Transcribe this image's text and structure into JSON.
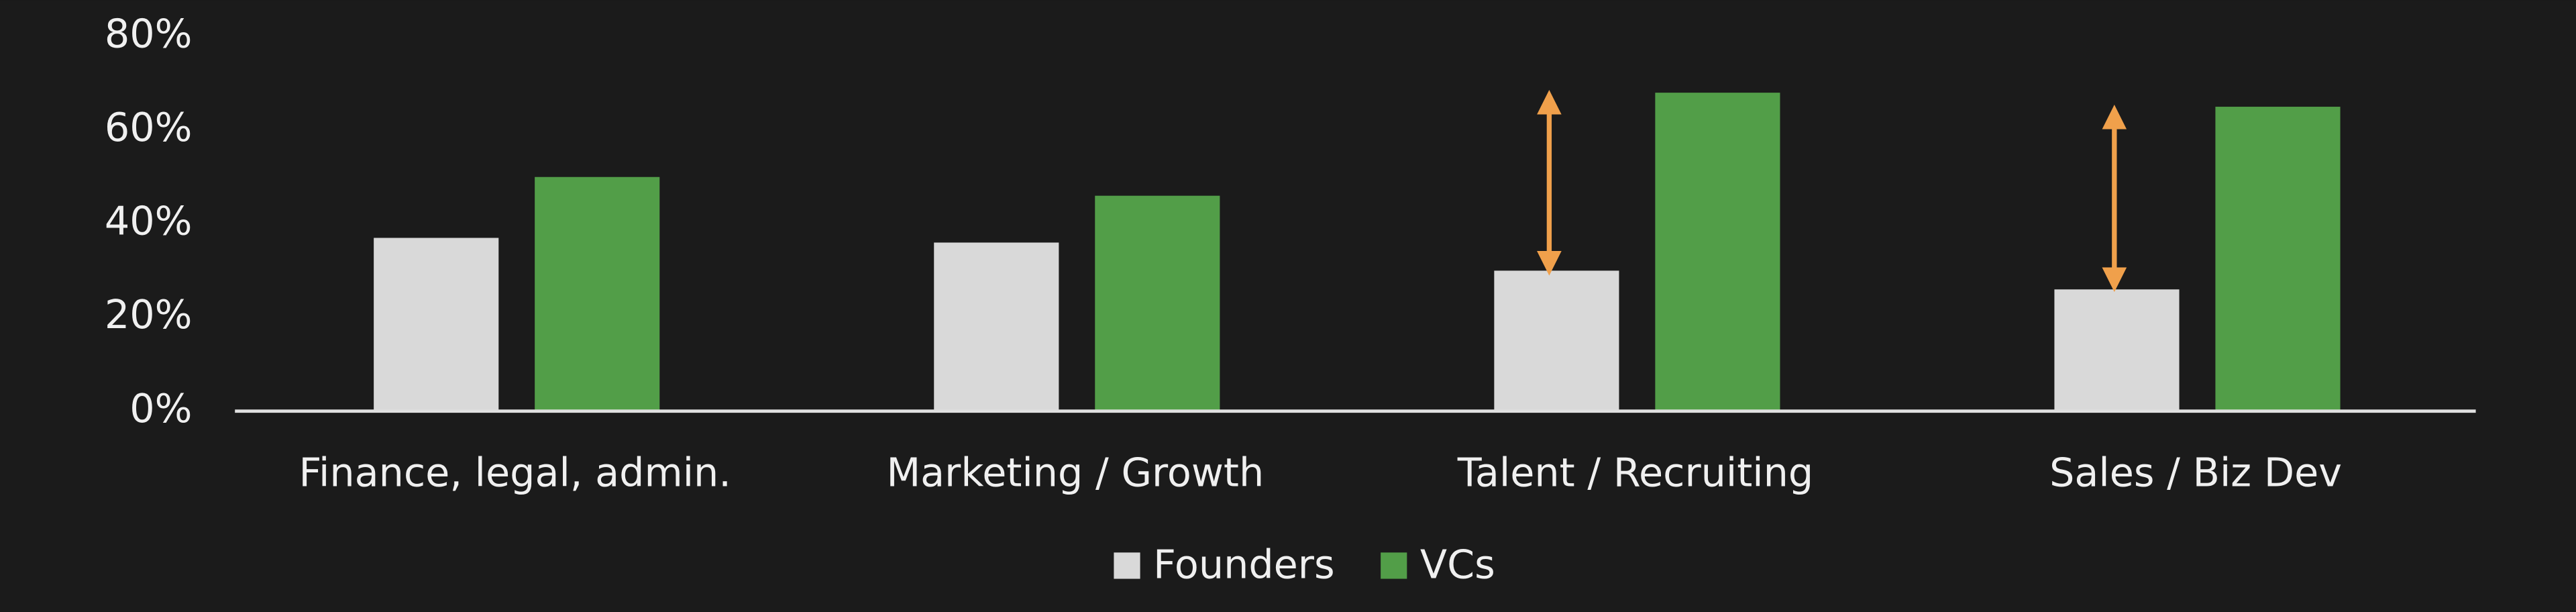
{
  "chart_data": {
    "type": "bar",
    "categories": [
      "Finance, legal, admin.",
      "Marketing / Growth",
      "Talent / Recruiting",
      "Sales / Biz Dev"
    ],
    "series": [
      {
        "name": "Founders",
        "color": "#d9d9d9",
        "values": [
          37,
          36,
          30,
          26
        ]
      },
      {
        "name": "VCs",
        "color": "#529e48",
        "values": [
          50,
          46,
          68,
          65
        ]
      }
    ],
    "ylim": [
      0,
      80
    ],
    "yticks": [
      {
        "value": 0,
        "label": "0%"
      },
      {
        "value": 20,
        "label": "20%"
      },
      {
        "value": 40,
        "label": "40%"
      },
      {
        "value": 60,
        "label": "60%"
      },
      {
        "value": 80,
        "label": "80%"
      }
    ],
    "grid": false,
    "legend": "bottom"
  }
}
